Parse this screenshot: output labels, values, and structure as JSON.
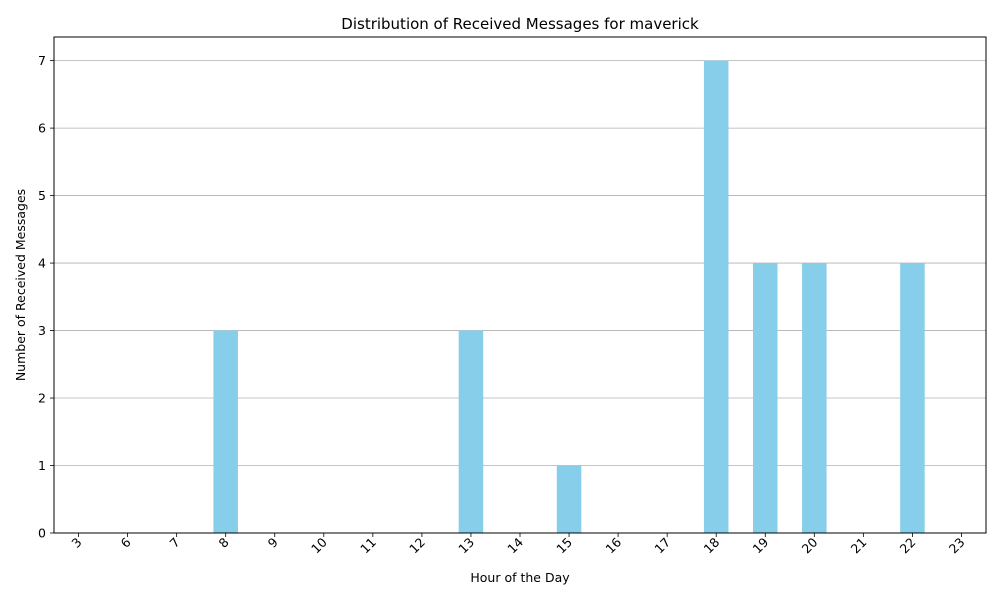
{
  "chart_data": {
    "type": "bar",
    "title": "Distribution of Received Messages for maverick",
    "xlabel": "Hour of the Day",
    "ylabel": "Number of Received Messages",
    "categories": [
      "3",
      "6",
      "7",
      "8",
      "9",
      "10",
      "11",
      "12",
      "13",
      "14",
      "15",
      "16",
      "17",
      "18",
      "19",
      "20",
      "21",
      "22",
      "23"
    ],
    "values": [
      0,
      0,
      0,
      3,
      0,
      0,
      0,
      0,
      3,
      0,
      1,
      0,
      0,
      7,
      4,
      4,
      0,
      4,
      0
    ],
    "ylim": [
      0,
      7.35
    ],
    "yticks": [
      0,
      1,
      2,
      3,
      4,
      5,
      6,
      7
    ],
    "grid": "y",
    "bar_color": "#87ceeb",
    "xtick_rotation": 45
  }
}
